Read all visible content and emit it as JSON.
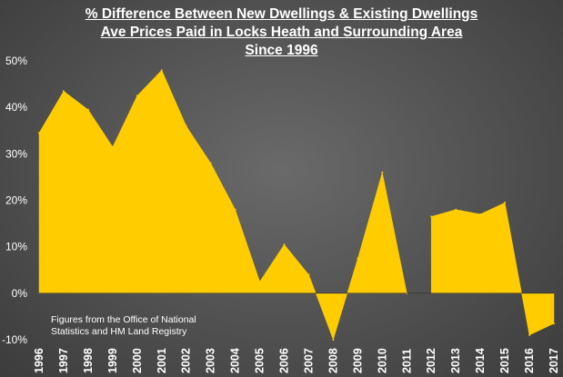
{
  "chart_data": {
    "type": "area",
    "title_lines": [
      "% Difference Between New Dwellings & Existing Dwellings",
      "Ave Prices Paid in Locks Heath and Surrounding Area",
      "Since 1996"
    ],
    "categories": [
      "1996",
      "1997",
      "1998",
      "1999",
      "2000",
      "2001",
      "2002",
      "2003",
      "2004",
      "2005",
      "2006",
      "2007",
      "2008",
      "2009",
      "2010",
      "2011",
      "2012",
      "2013",
      "2014",
      "2015",
      "2016",
      "2017"
    ],
    "values": [
      34.5,
      43.5,
      39.5,
      31.5,
      42.5,
      48,
      36,
      28,
      18,
      2.5,
      10.5,
      4,
      -10,
      7.5,
      26,
      0,
      16.5,
      18,
      17,
      19.5,
      -9,
      -6.5
    ],
    "ylim": [
      -10,
      50
    ],
    "yticks": [
      -10,
      0,
      10,
      20,
      30,
      40,
      50
    ],
    "ytick_labels": [
      "-10%",
      "0%",
      "10%",
      "20%",
      "30%",
      "40%",
      "50%"
    ],
    "xlabel": "",
    "ylabel": "",
    "grid": false,
    "legend": "none",
    "fill_color": "#FFCC00",
    "annotation_lines": [
      "Figures from the Office of National",
      "Statistics and HM Land Registry"
    ]
  }
}
